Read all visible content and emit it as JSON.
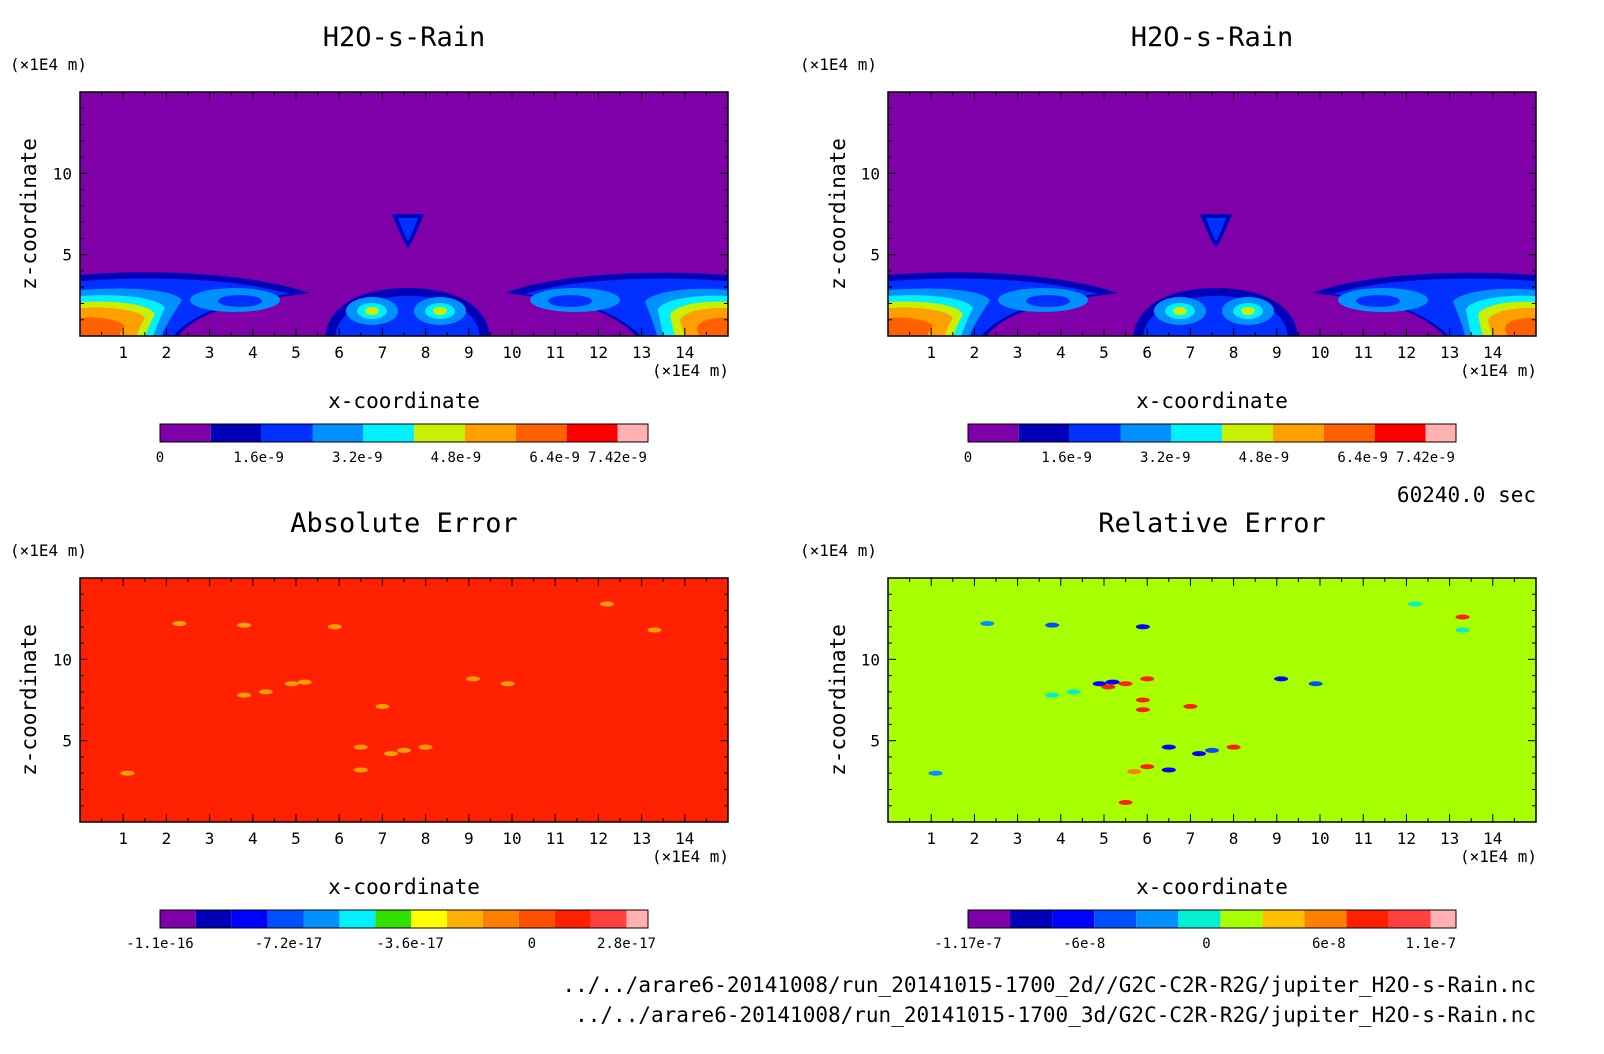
{
  "chart_data": [
    {
      "type": "heatmap",
      "title": "H2O-s-Rain",
      "xlabel": "x-coordinate",
      "ylabel": "z-coordinate",
      "x_unit": "(×1E4 m)",
      "y_unit": "(×1E4 m)",
      "xlim": [
        0,
        15
      ],
      "ylim": [
        0,
        15
      ],
      "x_ticks": [
        "1",
        "2",
        "3",
        "4",
        "5",
        "6",
        "7",
        "8",
        "9",
        "10",
        "11",
        "12",
        "13",
        "14"
      ],
      "y_ticks": [
        "5",
        "10"
      ],
      "colorbar": {
        "range": [
          0,
          7.42e-09
        ],
        "labels": [
          "0",
          "1.6e-9",
          "3.2e-9",
          "4.8e-9",
          "6.4e-9",
          "7.42e-9"
        ],
        "colors": [
          "#7f00a8",
          "#0000b8",
          "#0030ff",
          "#0090ff",
          "#00f0ff",
          "#c8f000",
          "#ffa000",
          "#ff6000",
          "#ff0000",
          "#ffb0b0"
        ]
      },
      "background_color": "#7f00a8"
    },
    {
      "type": "heatmap",
      "title": "H2O-s-Rain",
      "xlabel": "x-coordinate",
      "ylabel": "z-coordinate",
      "x_unit": "(×1E4 m)",
      "y_unit": "(×1E4 m)",
      "xlim": [
        0,
        15
      ],
      "ylim": [
        0,
        15
      ],
      "x_ticks": [
        "1",
        "2",
        "3",
        "4",
        "5",
        "6",
        "7",
        "8",
        "9",
        "10",
        "11",
        "12",
        "13",
        "14"
      ],
      "y_ticks": [
        "5",
        "10"
      ],
      "colorbar": {
        "range": [
          0,
          7.42e-09
        ],
        "labels": [
          "0",
          "1.6e-9",
          "3.2e-9",
          "4.8e-9",
          "6.4e-9",
          "7.42e-9"
        ],
        "colors": [
          "#7f00a8",
          "#0000b8",
          "#0030ff",
          "#0090ff",
          "#00f0ff",
          "#c8f000",
          "#ffa000",
          "#ff6000",
          "#ff0000",
          "#ffb0b0"
        ]
      },
      "background_color": "#7f00a8"
    },
    {
      "type": "heatmap",
      "title": "Absolute Error",
      "xlabel": "x-coordinate",
      "ylabel": "z-coordinate",
      "x_unit": "(×1E4 m)",
      "y_unit": "(×1E4 m)",
      "xlim": [
        0,
        15
      ],
      "ylim": [
        0,
        15
      ],
      "x_ticks": [
        "1",
        "2",
        "3",
        "4",
        "5",
        "6",
        "7",
        "8",
        "9",
        "10",
        "11",
        "12",
        "13",
        "14"
      ],
      "y_ticks": [
        "5",
        "10"
      ],
      "colorbar": {
        "range": [
          -1.1e-16,
          2.8e-17
        ],
        "labels": [
          "-1.1e-16",
          "-7.2e-17",
          "-3.6e-17",
          "0",
          "2.8e-17"
        ],
        "colors": [
          "#7f00a8",
          "#0000b8",
          "#0000ff",
          "#0050ff",
          "#0090ff",
          "#00f0ff",
          "#30e000",
          "#ffff00",
          "#ffb000",
          "#ff8000",
          "#ff5000",
          "#ff2000",
          "#ff4040",
          "#ffb0b0"
        ]
      },
      "background_color": "#ff2000",
      "spots": [
        [
          1.1,
          3.0
        ],
        [
          2.3,
          12.2
        ],
        [
          3.8,
          12.1
        ],
        [
          5.9,
          12.0
        ],
        [
          12.2,
          13.4
        ],
        [
          13.3,
          11.8
        ],
        [
          3.8,
          7.8
        ],
        [
          4.3,
          8.0
        ],
        [
          4.9,
          8.5
        ],
        [
          5.2,
          8.6
        ],
        [
          9.1,
          8.8
        ],
        [
          9.9,
          8.5
        ],
        [
          6.5,
          4.6
        ],
        [
          7.2,
          4.2
        ],
        [
          7.5,
          4.4
        ],
        [
          6.5,
          3.2
        ],
        [
          8.0,
          4.6
        ],
        [
          7.0,
          7.1
        ]
      ]
    },
    {
      "type": "heatmap",
      "title": "Relative Error",
      "xlabel": "x-coordinate",
      "ylabel": "z-coordinate",
      "x_unit": "(×1E4 m)",
      "y_unit": "(×1E4 m)",
      "xlim": [
        0,
        15
      ],
      "ylim": [
        0,
        15
      ],
      "x_ticks": [
        "1",
        "2",
        "3",
        "4",
        "5",
        "6",
        "7",
        "8",
        "9",
        "10",
        "11",
        "12",
        "13",
        "14"
      ],
      "y_ticks": [
        "5",
        "10"
      ],
      "colorbar": {
        "range": [
          -1.17e-07,
          1.1e-07
        ],
        "labels": [
          "-1.17e-7",
          "-6e-8",
          "0",
          "6e-8",
          "1.1e-7"
        ],
        "colors": [
          "#7f00a8",
          "#0000b8",
          "#0000ff",
          "#0050ff",
          "#0090ff",
          "#00f0d0",
          "#a8ff00",
          "#ffc000",
          "#ff8000",
          "#ff2000",
          "#ff4040",
          "#ffb0b0"
        ]
      },
      "background_color": "#a8ff00",
      "spots": [
        [
          1.1,
          3.0,
          "#0090ff"
        ],
        [
          2.3,
          12.2,
          "#0090ff"
        ],
        [
          3.8,
          12.1,
          "#0050ff"
        ],
        [
          5.9,
          12.0,
          "#0000ff"
        ],
        [
          12.2,
          13.4,
          "#00f0d0"
        ],
        [
          13.3,
          11.8,
          "#00f0d0"
        ],
        [
          13.3,
          12.6,
          "#ff2000"
        ],
        [
          3.8,
          7.8,
          "#00f0d0"
        ],
        [
          4.3,
          8.0,
          "#00f0d0"
        ],
        [
          4.9,
          8.5,
          "#0000ff"
        ],
        [
          5.2,
          8.6,
          "#0000ff"
        ],
        [
          5.1,
          8.3,
          "#ff2000"
        ],
        [
          5.5,
          8.5,
          "#ff2000"
        ],
        [
          6.0,
          8.8,
          "#ff2000"
        ],
        [
          5.9,
          7.5,
          "#ff2000"
        ],
        [
          5.9,
          6.9,
          "#ff2000"
        ],
        [
          9.1,
          8.8,
          "#0000ff"
        ],
        [
          9.9,
          8.5,
          "#0050ff"
        ],
        [
          6.5,
          4.6,
          "#0000ff"
        ],
        [
          7.2,
          4.2,
          "#0000ff"
        ],
        [
          7.5,
          4.4,
          "#0050ff"
        ],
        [
          6.5,
          3.2,
          "#0000ff"
        ],
        [
          8.0,
          4.6,
          "#ff2000"
        ],
        [
          5.7,
          3.1,
          "#ff8000"
        ],
        [
          6.0,
          3.4,
          "#ff2000"
        ],
        [
          5.5,
          1.2,
          "#ff2000"
        ],
        [
          7.0,
          7.1,
          "#ff2000"
        ]
      ]
    }
  ],
  "time_label": "60240.0 sec",
  "footer_lines": [
    "../../arare6-20141008/run_20141015-1700_2d//G2C-C2R-R2G/jupiter_H2O-s-Rain.nc",
    "../../arare6-20141008/run_20141015-1700_3d/G2C-C2R-R2G/jupiter_H2O-s-Rain.nc"
  ]
}
